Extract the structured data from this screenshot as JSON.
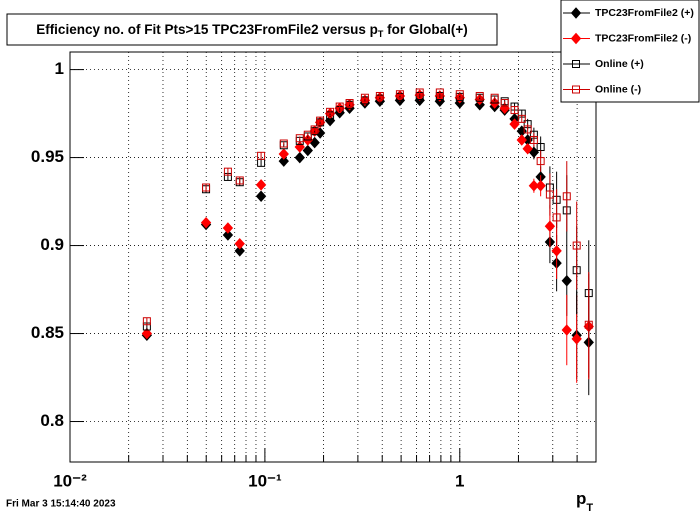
{
  "chart_data": {
    "type": "scatter",
    "title": [
      "Efficiency no. of Fit Pts>15 TPC23FromFile2 versus p",
      "T",
      " for Global(+)"
    ],
    "xlabel": [
      "p",
      "T"
    ],
    "timestamp": "Fri Mar  3 15:14:40 2023",
    "log_x": true,
    "grid": true,
    "legend": "top-right",
    "xlim": [
      0.01,
      5
    ],
    "ylim": [
      0.777,
      1.01
    ],
    "xticks": [
      {
        "value": 0.01,
        "label": "10⁻²"
      },
      {
        "value": 0.1,
        "label": "10⁻¹"
      },
      1
    ],
    "xminorticks": [
      0.02,
      0.03,
      0.04,
      0.05,
      0.06,
      0.07,
      0.08,
      0.09,
      0.2,
      0.3,
      0.4,
      0.5,
      0.6,
      0.7,
      0.8,
      0.9,
      2,
      3,
      4,
      5
    ],
    "yticks": [
      0.8,
      0.85,
      0.9,
      0.95,
      1
    ],
    "x": [
      0.0248,
      0.0499,
      0.0646,
      0.0743,
      0.0956,
      0.125,
      0.151,
      0.166,
      0.18,
      0.192,
      0.216,
      0.242,
      0.272,
      0.326,
      0.389,
      0.493,
      0.623,
      0.79,
      1.0,
      1.266,
      1.51,
      1.7,
      1.91,
      2.08,
      2.23,
      2.4,
      2.6,
      2.9,
      3.14,
      3.54,
      3.98,
      4.59
    ],
    "yerr": [
      0.002,
      0.002,
      0.002,
      0.002,
      0.002,
      0.001,
      0.001,
      0.001,
      0.001,
      0.001,
      0.001,
      0.001,
      0.001,
      0.001,
      0.001,
      0.001,
      0.001,
      0.001,
      0.001,
      0.001,
      0.001,
      0.001,
      0.002,
      0.002,
      0.003,
      0.004,
      0.006,
      0.012,
      0.016,
      0.02,
      0.025,
      0.03
    ],
    "series": [
      {
        "name": "TPC23FromFile2 (+)",
        "color": "#000000",
        "marker": "diamond",
        "values": [
          0.849,
          0.912,
          0.906,
          0.897,
          0.928,
          0.948,
          0.95,
          0.954,
          0.9585,
          0.964,
          0.971,
          0.9755,
          0.978,
          0.981,
          0.982,
          0.9825,
          0.9825,
          0.982,
          0.981,
          0.98,
          0.979,
          0.977,
          0.972,
          0.965,
          0.96,
          0.953,
          0.939,
          0.902,
          0.89,
          0.88,
          0.849,
          0.845
        ]
      },
      {
        "name": "TPC23FromFile2 (-)",
        "color": "#ff0000",
        "marker": "diamond",
        "values": [
          0.85,
          0.913,
          0.91,
          0.901,
          0.9345,
          0.952,
          0.956,
          0.96,
          0.965,
          0.97,
          0.975,
          0.978,
          0.98,
          0.9825,
          0.984,
          0.985,
          0.9855,
          0.985,
          0.984,
          0.983,
          0.981,
          0.978,
          0.969,
          0.96,
          0.955,
          0.934,
          0.934,
          0.911,
          0.897,
          0.852,
          0.847,
          0.854
        ]
      },
      {
        "name": "Online (+)",
        "color": "#000000",
        "marker": "square-open",
        "values": [
          0.854,
          0.932,
          0.939,
          0.936,
          0.947,
          0.957,
          0.9595,
          0.962,
          0.965,
          0.97,
          0.974,
          0.977,
          0.98,
          0.9825,
          0.9835,
          0.9845,
          0.985,
          0.985,
          0.9845,
          0.984,
          0.983,
          0.982,
          0.979,
          0.975,
          0.969,
          0.963,
          0.956,
          0.933,
          0.926,
          0.92,
          0.886,
          0.873
        ]
      },
      {
        "name": "Online (-)",
        "color": "#cc0000",
        "marker": "square-open",
        "values": [
          0.857,
          0.933,
          0.942,
          0.937,
          0.951,
          0.958,
          0.961,
          0.963,
          0.966,
          0.971,
          0.976,
          0.979,
          0.981,
          0.984,
          0.985,
          0.986,
          0.987,
          0.987,
          0.986,
          0.985,
          0.984,
          0.981,
          0.977,
          0.972,
          0.966,
          0.96,
          0.948,
          0.929,
          0.916,
          0.928,
          0.9,
          0.855
        ]
      }
    ]
  }
}
